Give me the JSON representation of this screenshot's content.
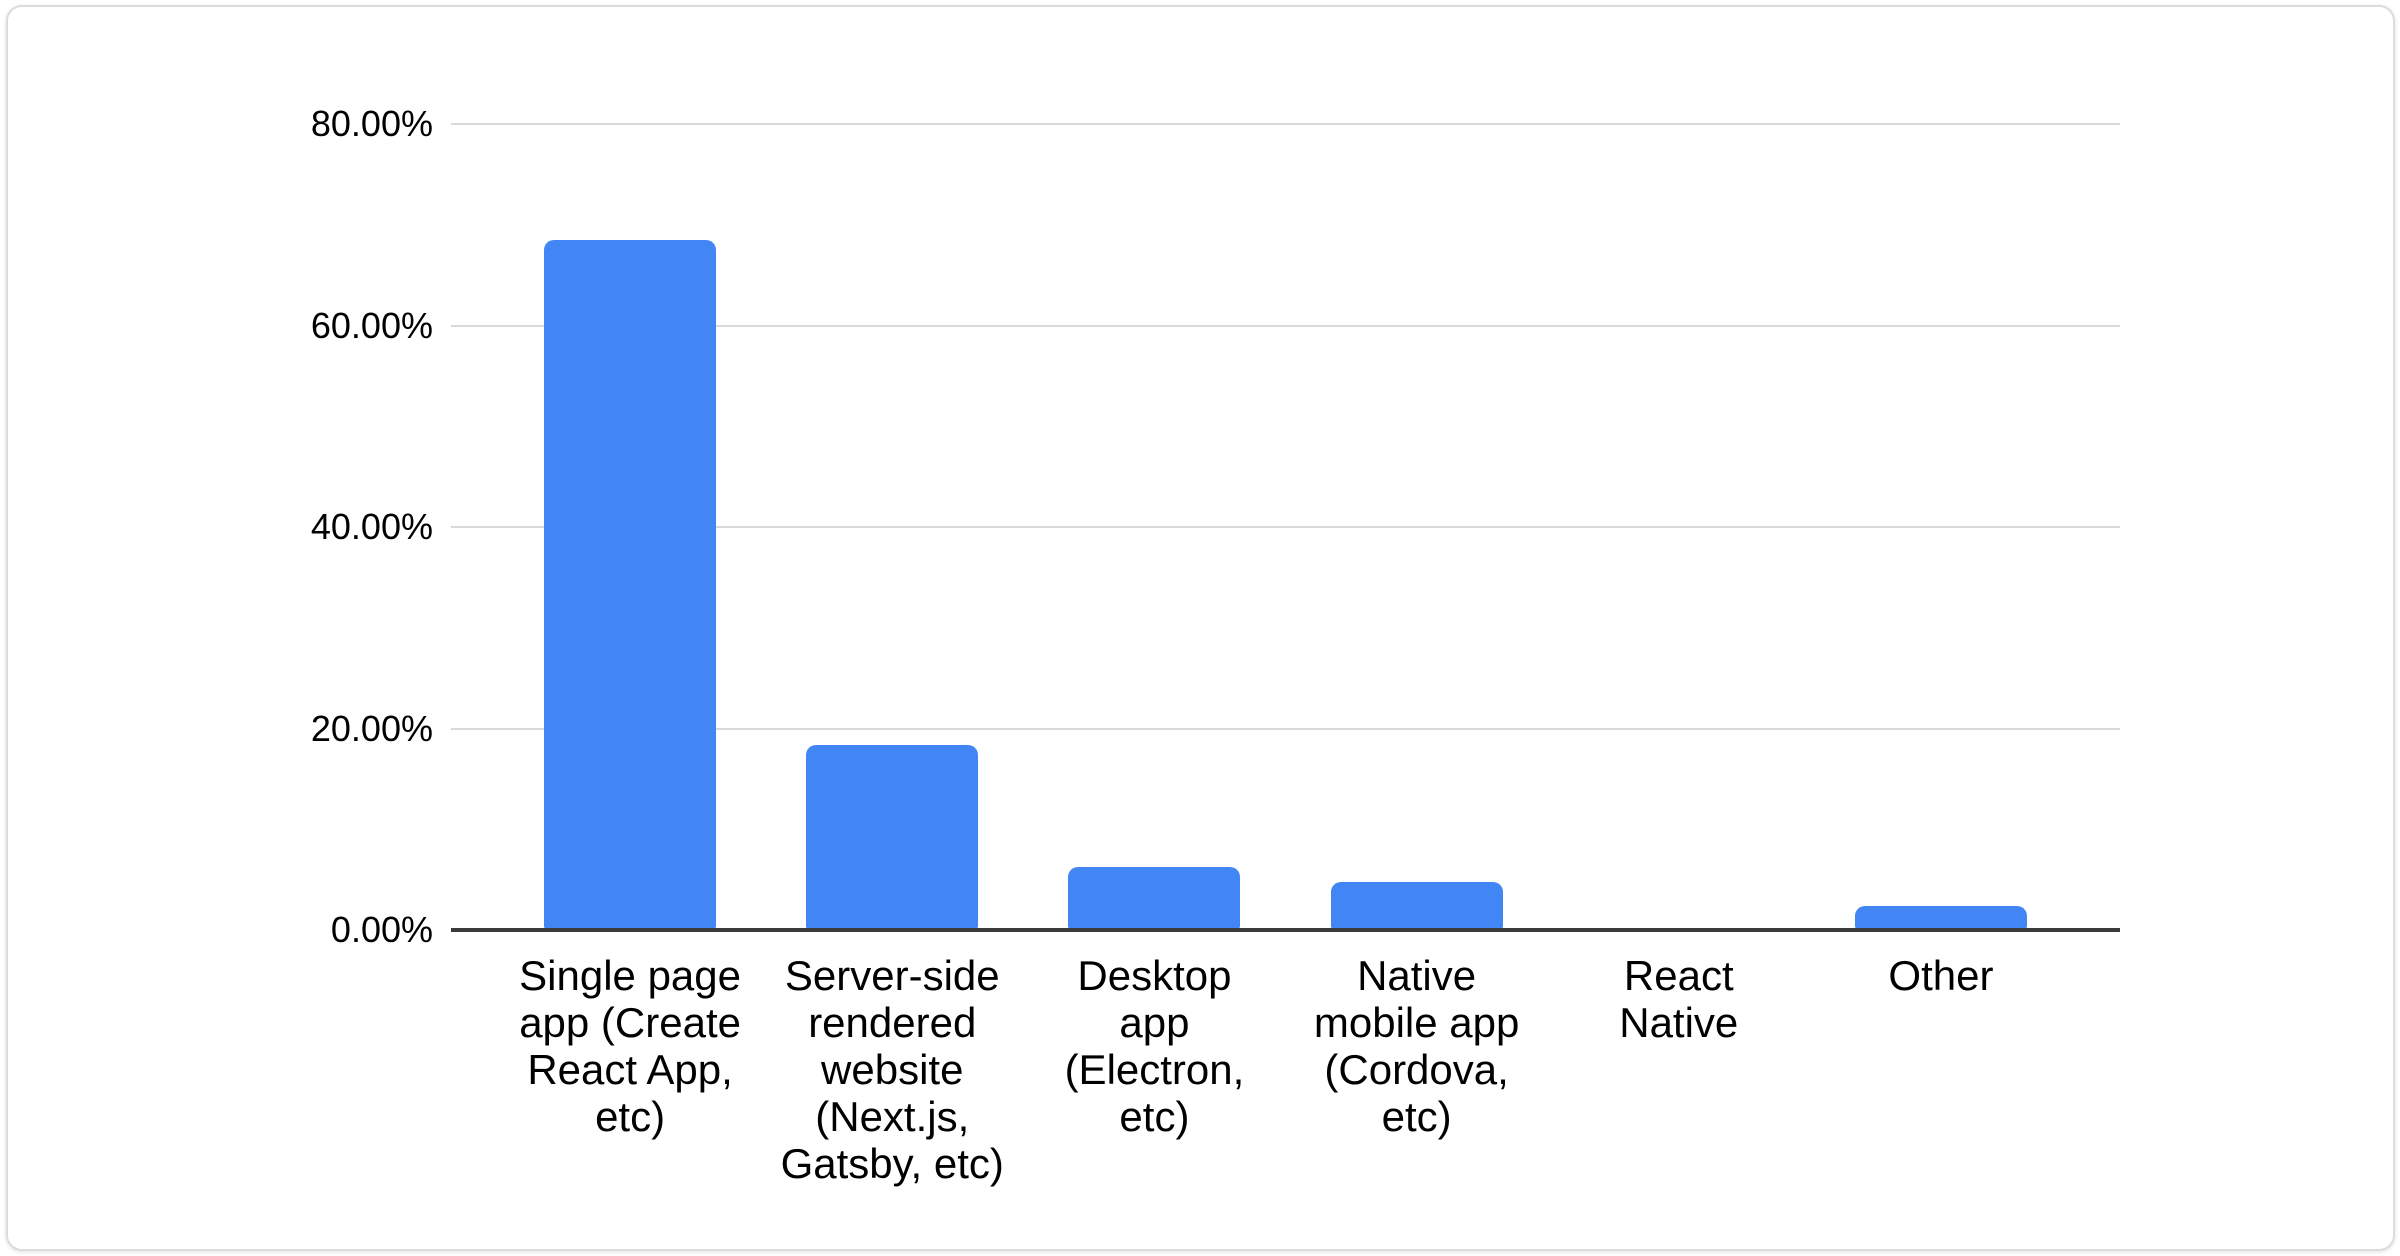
{
  "chart_data": {
    "type": "bar",
    "title": "",
    "xlabel": "",
    "ylabel": "",
    "legend": "none",
    "grid": "horizontal",
    "categories": [
      "Single page app (Create React App, etc)",
      "Server-side rendered website (Next.js, Gatsby, etc)",
      "Desktop app (Electron, etc)",
      "Native mobile app (Cordova, etc)",
      "React Native",
      "Other"
    ],
    "category_lines": [
      [
        "Single page",
        "app (Create",
        "React App,",
        "etc)"
      ],
      [
        "Server-side",
        "rendered",
        "website",
        "(Next.js,",
        "Gatsby, etc)"
      ],
      [
        "Desktop",
        "app",
        "(Electron,",
        "etc)"
      ],
      [
        "Native",
        "mobile app",
        "(Cordova,",
        "etc)"
      ],
      [
        "React",
        "Native"
      ],
      [
        "Other"
      ]
    ],
    "values": [
      68.5,
      18.4,
      6.3,
      4.8,
      0,
      2.4
    ],
    "unit": "%",
    "ylim": [
      0,
      80
    ],
    "yticks": [
      {
        "value": 80,
        "label": "80.00%"
      },
      {
        "value": 60,
        "label": "60.00%"
      },
      {
        "value": 40,
        "label": "40.00%"
      },
      {
        "value": 20,
        "label": "20.00%"
      },
      {
        "value": 0,
        "label": "0.00%"
      }
    ],
    "colors": {
      "bar": "#4285f4",
      "gridline": "#d9d9d9",
      "axis_line": "#3b3b3b",
      "label_text": "#000000",
      "card_border": "#dadce0",
      "card_background": "#ffffff"
    }
  }
}
